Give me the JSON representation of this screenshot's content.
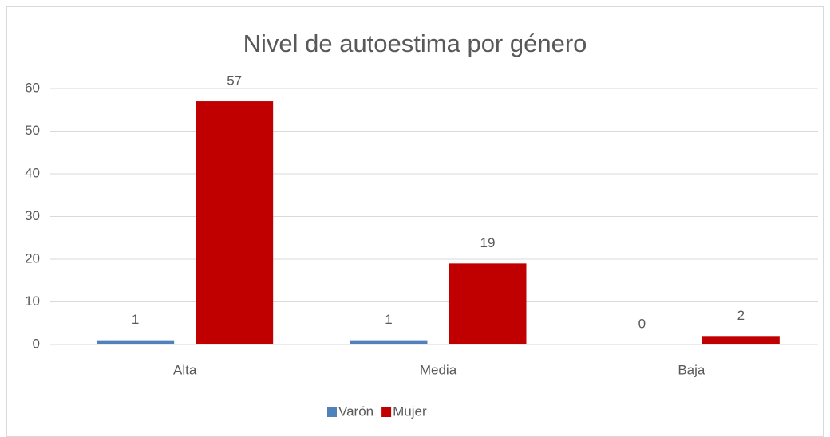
{
  "chart_data": {
    "type": "bar",
    "title": "Nivel de autoestima por género",
    "categories": [
      "Alta",
      "Media",
      "Baja"
    ],
    "series": [
      {
        "name": "Varón",
        "color": "#4f81bd",
        "values": [
          1,
          1,
          0
        ]
      },
      {
        "name": "Mujer",
        "color": "#c00000",
        "values": [
          57,
          19,
          2
        ]
      }
    ],
    "ylim": [
      0,
      60
    ],
    "yticks": [
      0,
      10,
      20,
      30,
      40,
      50,
      60
    ],
    "grid": true,
    "legend": "bottom"
  }
}
